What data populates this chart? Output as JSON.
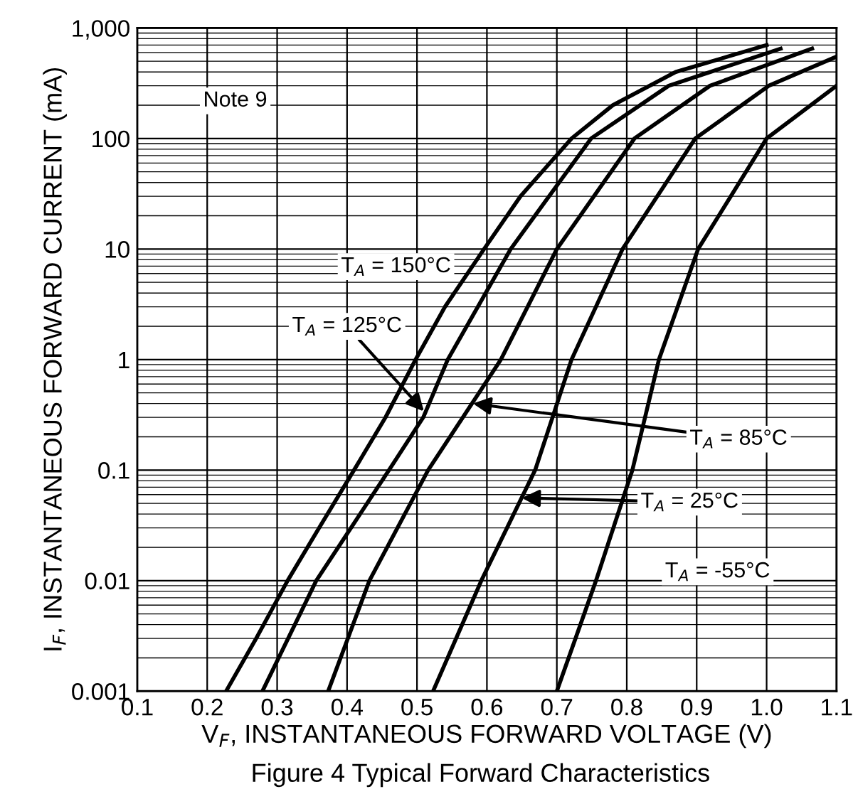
{
  "chart_data": {
    "type": "line",
    "title": "Figure 4 Typical Forward Characteristics",
    "xlabel": "V$_{F}$, INSTANTANEOUS FORWARD VOLTAGE (V)",
    "ylabel": "I$_{F}$, INSTANTANEOUS FORWARD CURRENT (mA)",
    "log": "y",
    "grid": true,
    "legend": false,
    "marker": "none",
    "line_style": "solid",
    "xlim": [
      0.1,
      1.1
    ],
    "xticks": [
      {
        "value": 0.1,
        "label": "0.1"
      },
      {
        "value": 0.2,
        "label": "0.2"
      },
      {
        "value": 0.3,
        "label": "0.3"
      },
      {
        "value": 0.4,
        "label": "0.4"
      },
      {
        "value": 0.5,
        "label": "0.5"
      },
      {
        "value": 0.6,
        "label": "0.6"
      },
      {
        "value": 0.7,
        "label": "0.7"
      },
      {
        "value": 0.8,
        "label": "0.8"
      },
      {
        "value": 0.9,
        "label": "0.9"
      },
      {
        "value": 1.0,
        "label": "1.0"
      },
      {
        "value": 1.1,
        "label": "1.1"
      }
    ],
    "ylim": [
      0.001,
      1000
    ],
    "yticks": [
      0.001,
      0.01,
      0.1,
      1,
      10,
      100,
      {
        "value": 1000,
        "label": "1,000"
      }
    ],
    "series": [
      {
        "name": "T$_{A}$ = 150°C",
        "color": "#000000",
        "x": [
          0.227,
          0.27,
          0.315,
          0.36,
          0.41,
          0.455,
          0.498,
          0.54,
          0.596,
          0.648,
          0.721,
          0.78,
          0.87,
          1.0
        ],
        "values": [
          0.001,
          0.003,
          0.01,
          0.03,
          0.1,
          0.3,
          1,
          3,
          10,
          30,
          100,
          200,
          400,
          700
        ]
      },
      {
        "color": "#000000",
        "x": [
          0.279,
          0.356,
          0.46,
          0.509,
          0.544,
          0.634,
          0.749,
          0.86,
          1.02
        ],
        "values": [
          0.001,
          0.01,
          0.1,
          0.3,
          1,
          10,
          100,
          300,
          650
        ]
      },
      {
        "color": "#000000",
        "x": [
          0.373,
          0.432,
          0.516,
          0.62,
          0.7,
          0.811,
          0.919,
          1.065
        ],
        "values": [
          0.001,
          0.01,
          0.1,
          1,
          10,
          100,
          300,
          650
        ]
      },
      {
        "color": "#000000",
        "x": [
          0.523,
          0.592,
          0.669,
          0.721,
          0.794,
          0.898,
          1.003,
          1.1
        ],
        "values": [
          0.001,
          0.01,
          0.1,
          1,
          10,
          100,
          300,
          550
        ]
      },
      {
        "name": "T$_{A}$ = -55°C",
        "color": "#000000",
        "x": [
          0.7,
          0.756,
          0.808,
          0.846,
          0.902,
          1.0,
          1.1
        ],
        "values": [
          0.001,
          0.01,
          0.1,
          1,
          10,
          100,
          300
        ]
      }
    ],
    "annotations": [
      "Note 9",
      {
        "text": "T$_{A}$ = 125°C",
        "x": 0.51,
        "y": 0.34
      },
      {
        "text": "T$_{A}$ = 85°C",
        "x": 0.58,
        "y": 0.4
      },
      {
        "text": "T$_{A}$ = 25°C",
        "x": 0.65,
        "y": 0.056
      }
    ]
  }
}
